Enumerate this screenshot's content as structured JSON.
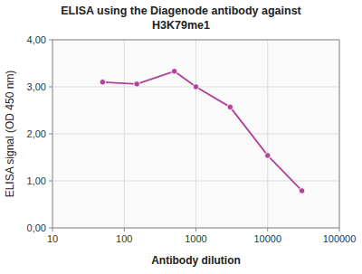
{
  "chart_data": {
    "type": "line",
    "title": "ELISA using the Diagenode antibody against",
    "subtitle": "H3K79me1",
    "xlabel": "Antibody dilution",
    "ylabel": "ELISA signal (OD 450 nm)",
    "x": [
      50,
      150,
      500,
      1000,
      3000,
      10000,
      30000
    ],
    "values": [
      3.1,
      3.06,
      3.33,
      3.0,
      2.57,
      1.54,
      0.79
    ],
    "color": "#b0429a",
    "marker": "circle",
    "log": "x",
    "grid": true,
    "xlim": [
      10,
      100000
    ],
    "ylim": [
      0,
      4.0
    ],
    "xticks": [
      10,
      100,
      1000,
      10000,
      100000
    ],
    "yticks": [
      {
        "value": 0.0,
        "label": "0,00"
      },
      {
        "value": 1.0,
        "label": "1,00"
      },
      {
        "value": 2.0,
        "label": "2,00"
      },
      {
        "value": 3.0,
        "label": "3,00"
      },
      {
        "value": 4.0,
        "label": "4,00"
      }
    ]
  }
}
